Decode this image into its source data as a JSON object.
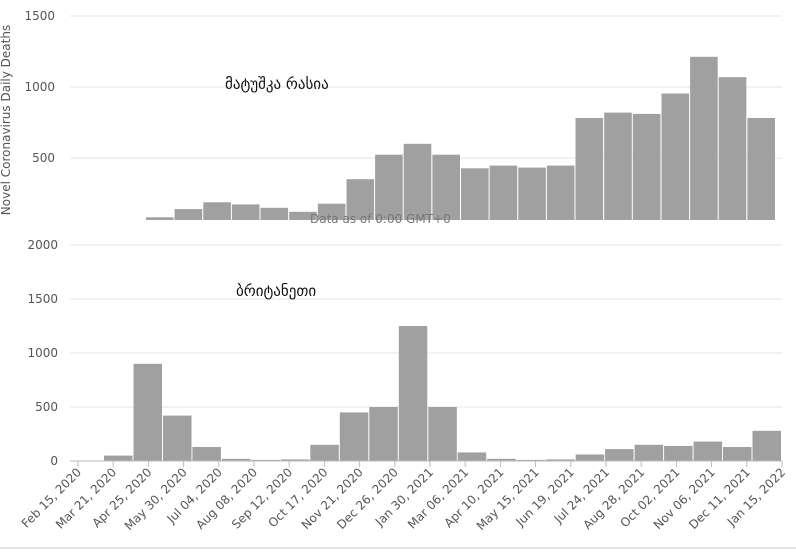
{
  "chart_data": [
    {
      "type": "bar",
      "title": "მატუშკა რასია",
      "ylabel": "Novel Coronavirus Daily Deaths",
      "clipped_text": "Data as of 0:00 GMT+0",
      "ylim": [
        0,
        1500
      ],
      "yticks": [
        "1500",
        "1000",
        "500"
      ],
      "grid": true,
      "color": "#a0a0a0",
      "x": [
        "Apr 2020",
        "May 2020",
        "Jun 2020",
        "Jul 2020",
        "Aug 2020",
        "Sep 2020",
        "Oct 2020",
        "Nov 2020",
        "Dec 2020",
        "Jan 2021",
        "Feb 2021",
        "Mar 2021",
        "Apr 2021",
        "May 2021",
        "Jun 2021",
        "Jul 2021",
        "Aug 2021",
        "Sep 2021",
        "Oct 2021",
        "Nov 2021",
        "Dec 2021",
        "Jan 2022"
      ],
      "values": [
        20,
        80,
        130,
        115,
        90,
        60,
        120,
        300,
        480,
        560,
        480,
        380,
        400,
        385,
        400,
        750,
        790,
        780,
        930,
        1200,
        1050,
        750
      ]
    },
    {
      "type": "bar",
      "title": "ბრიტანეთი",
      "ylabel": "",
      "ylim": [
        0,
        2000
      ],
      "yticks": [
        "2000",
        "1500",
        "1000",
        "500",
        "0"
      ],
      "grid": true,
      "color": "#a0a0a0",
      "x": [
        "Mar 2020",
        "Apr 2020",
        "May 2020",
        "Jun 2020",
        "Jul 2020",
        "Aug 2020",
        "Sep 2020",
        "Oct 2020",
        "Nov 2020",
        "Dec 2020",
        "Jan 2021",
        "Feb 2021",
        "Mar 2021",
        "Apr 2021",
        "May 2021",
        "Jun 2021",
        "Jul 2021",
        "Aug 2021",
        "Sep 2021",
        "Oct 2021",
        "Nov 2021",
        "Dec 2021",
        "Jan 2022"
      ],
      "values": [
        50,
        900,
        420,
        130,
        20,
        10,
        15,
        150,
        450,
        500,
        1250,
        500,
        80,
        20,
        10,
        15,
        60,
        110,
        150,
        140,
        180,
        130,
        280
      ]
    }
  ],
  "x_axis": {
    "ticks": [
      "Feb 15, 2020",
      "Mar 21, 2020",
      "Apr 25, 2020",
      "May 30, 2020",
      "Jul 04, 2020",
      "Aug 08, 2020",
      "Sep 12, 2020",
      "Oct 17, 2020",
      "Nov 21, 2020",
      "Dec 26, 2020",
      "Jan 30, 2021",
      "Mar 06, 2021",
      "Apr 10, 2021",
      "May 15, 2021",
      "Jun 19, 2021",
      "Jul 24, 2021",
      "Aug 28, 2021",
      "Oct 02, 2021",
      "Nov 06, 2021",
      "Dec 11, 2021",
      "Jan 15, 2022"
    ]
  }
}
